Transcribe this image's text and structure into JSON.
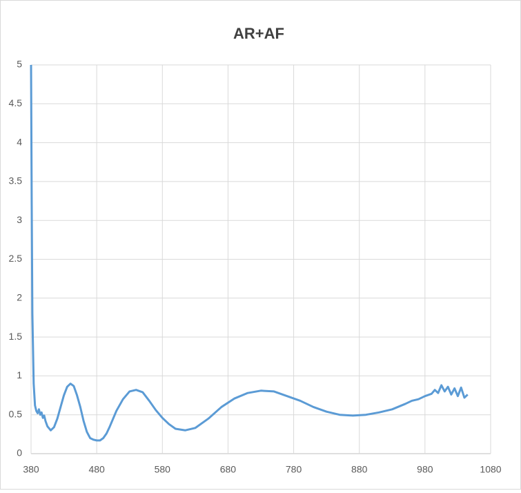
{
  "chart_data": {
    "type": "line",
    "title": "AR+AF",
    "x": [
      380,
      381,
      382,
      384,
      386,
      388,
      390,
      392,
      394,
      396,
      398,
      400,
      402,
      405,
      410,
      415,
      420,
      425,
      430,
      435,
      440,
      445,
      450,
      455,
      460,
      465,
      470,
      475,
      480,
      485,
      490,
      495,
      500,
      510,
      520,
      530,
      540,
      550,
      560,
      570,
      580,
      590,
      600,
      615,
      630,
      650,
      670,
      690,
      710,
      730,
      750,
      770,
      790,
      810,
      830,
      850,
      870,
      890,
      910,
      930,
      950,
      960,
      970,
      980,
      990,
      995,
      1000,
      1005,
      1010,
      1015,
      1020,
      1025,
      1030,
      1035,
      1040,
      1045
    ],
    "series": [
      {
        "name": "AR+AF",
        "color": "#5b9bd5",
        "values": [
          5,
          3.2,
          1.8,
          0.9,
          0.62,
          0.55,
          0.52,
          0.57,
          0.5,
          0.53,
          0.46,
          0.49,
          0.42,
          0.35,
          0.3,
          0.34,
          0.45,
          0.6,
          0.75,
          0.86,
          0.9,
          0.87,
          0.75,
          0.6,
          0.42,
          0.28,
          0.2,
          0.18,
          0.17,
          0.17,
          0.2,
          0.26,
          0.35,
          0.55,
          0.7,
          0.8,
          0.82,
          0.79,
          0.68,
          0.56,
          0.46,
          0.38,
          0.32,
          0.3,
          0.33,
          0.45,
          0.6,
          0.71,
          0.78,
          0.81,
          0.8,
          0.74,
          0.68,
          0.6,
          0.54,
          0.5,
          0.49,
          0.5,
          0.53,
          0.57,
          0.64,
          0.68,
          0.7,
          0.74,
          0.77,
          0.82,
          0.78,
          0.88,
          0.8,
          0.86,
          0.76,
          0.84,
          0.74,
          0.85,
          0.72,
          0.76
        ]
      }
    ],
    "xlim": [
      380,
      1080
    ],
    "xticks": [
      380,
      480,
      580,
      680,
      780,
      880,
      980,
      1080
    ],
    "ylim": [
      0,
      5
    ],
    "yticks": [
      0,
      0.5,
      1,
      1.5,
      2,
      2.5,
      3,
      3.5,
      4,
      4.5,
      5
    ],
    "grid": true
  }
}
